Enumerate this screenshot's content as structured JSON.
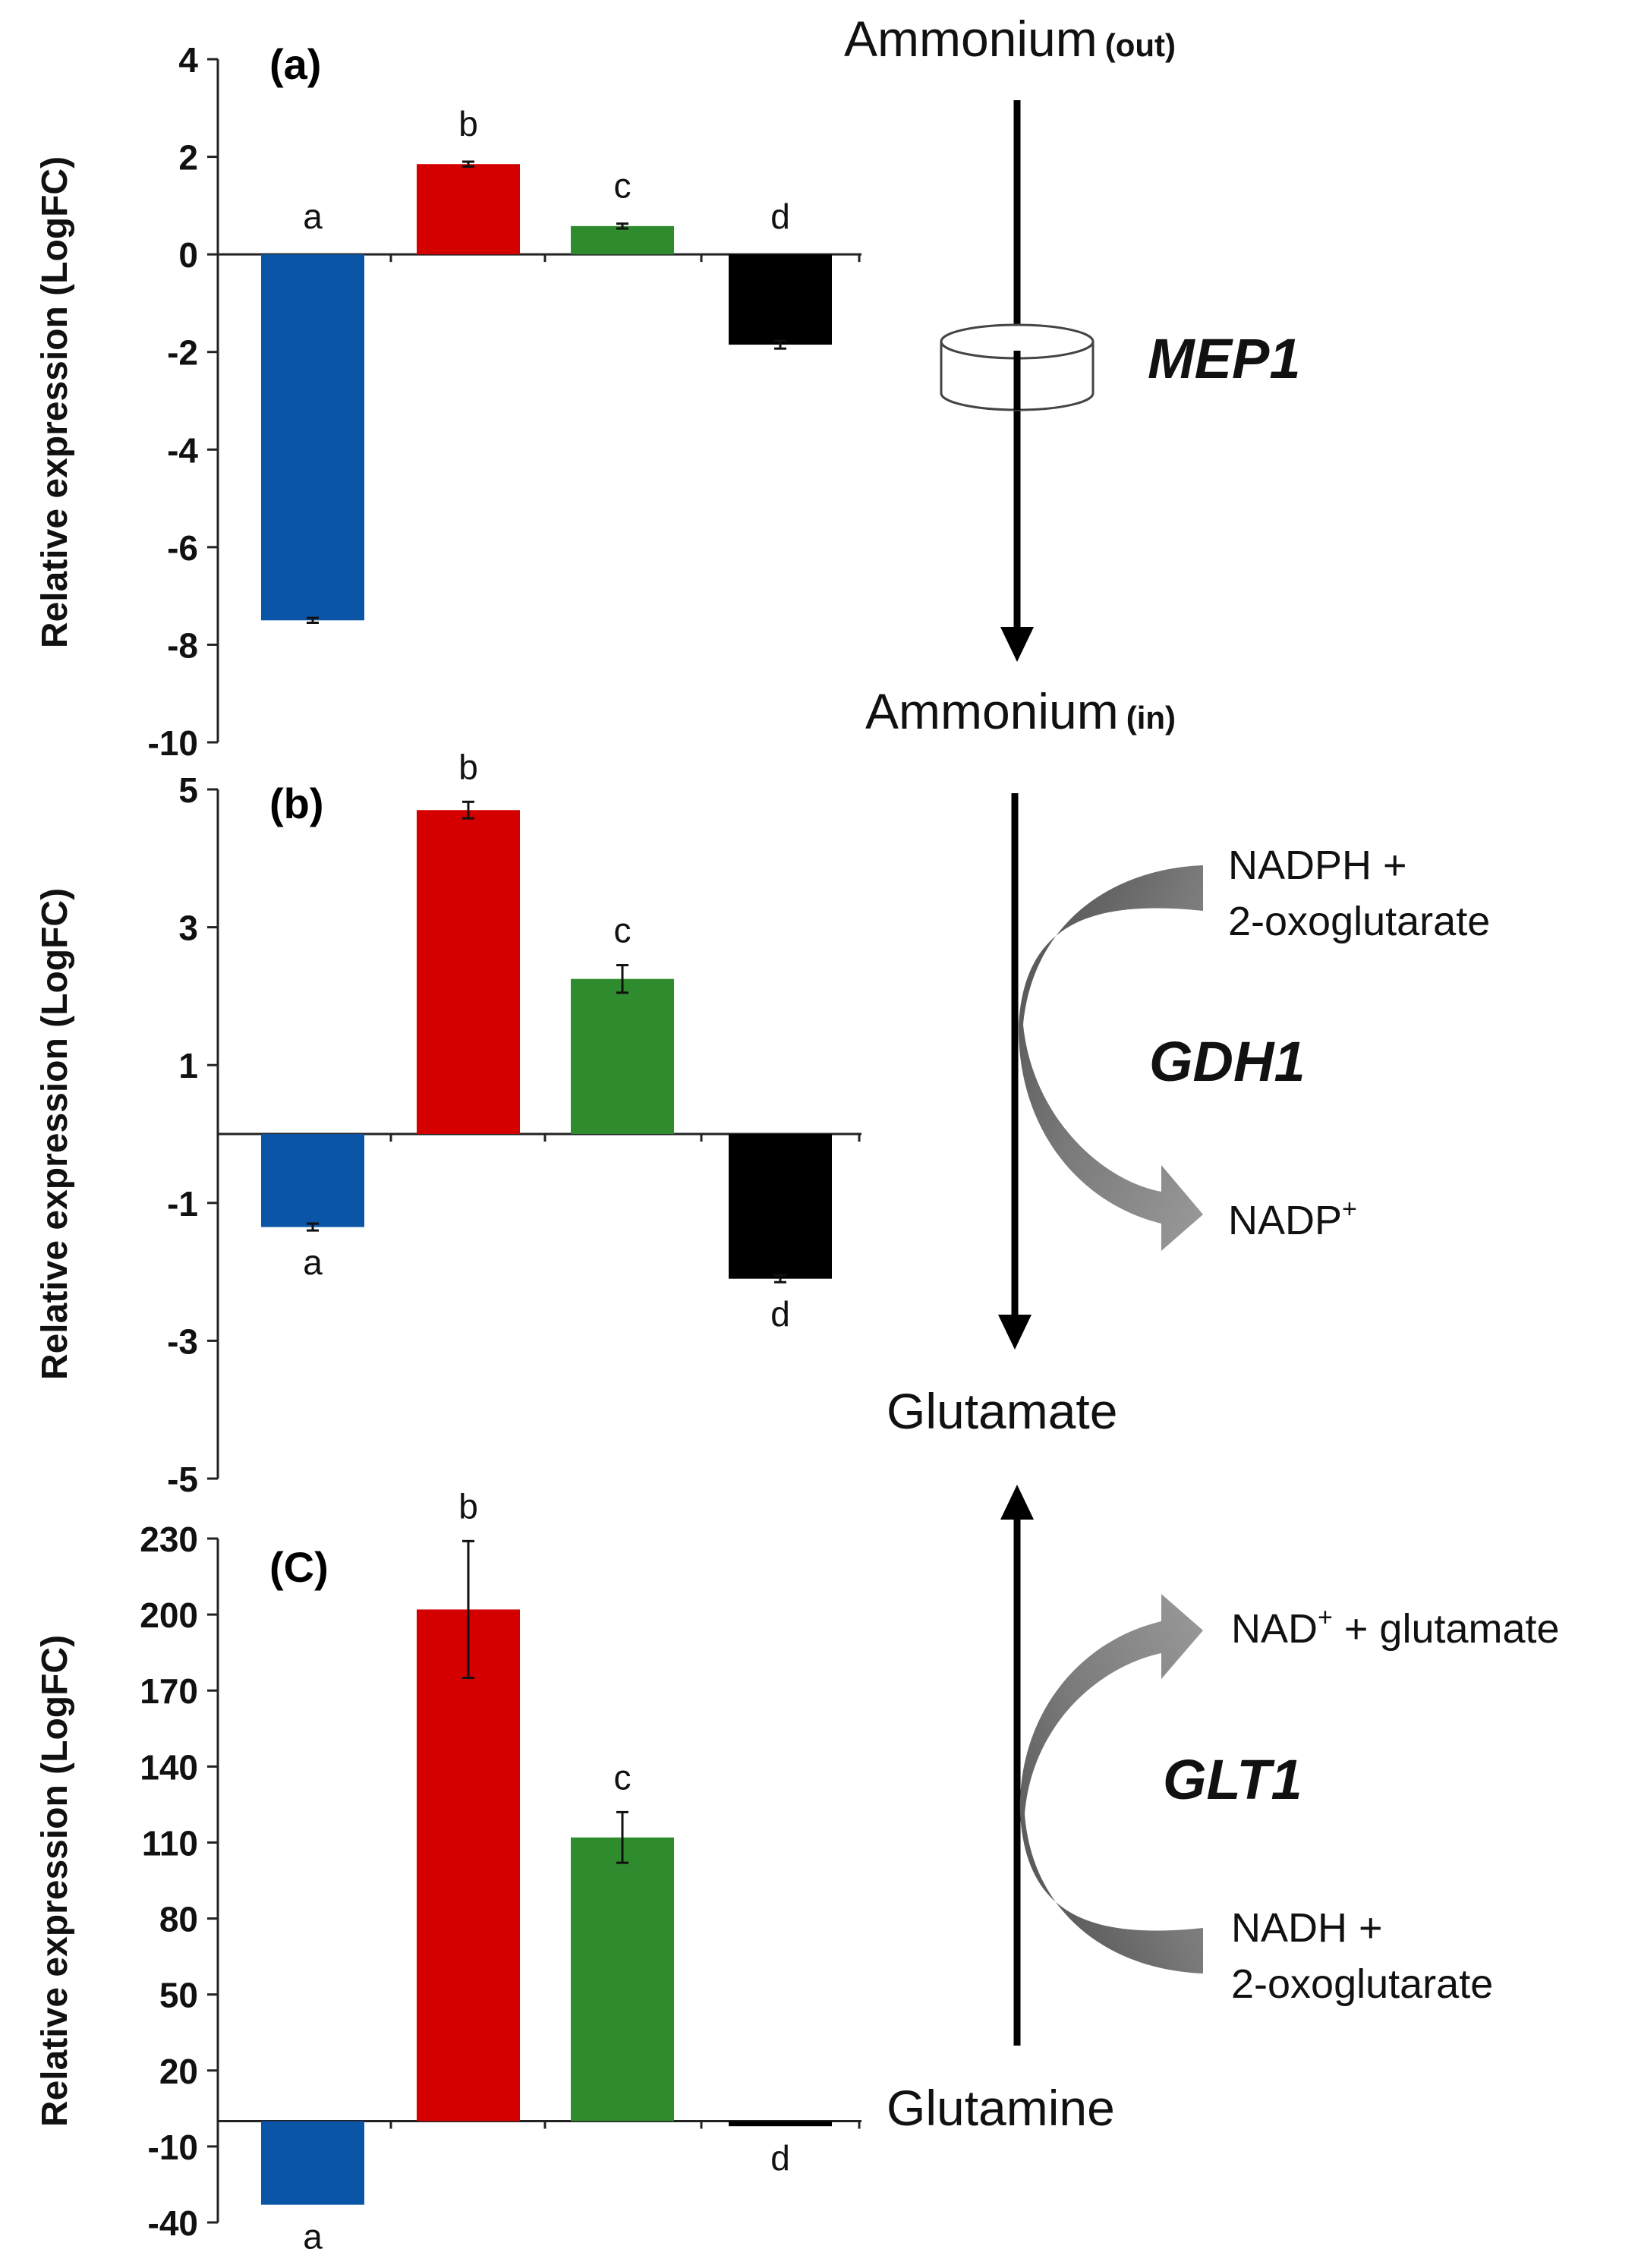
{
  "chart_data": [
    {
      "type": "bar",
      "panel_label": "(a)",
      "ylabel": "Relative expression (LogFC)",
      "ylim": [
        -10,
        4
      ],
      "yticks": [
        4,
        2,
        0,
        -2,
        -4,
        -6,
        -8,
        -10
      ],
      "values": [
        -7.5,
        1.85,
        0.58,
        -1.85
      ],
      "errors": [
        0.05,
        0.05,
        0.05,
        0.08
      ],
      "letters": [
        "a",
        "b",
        "c",
        "d"
      ],
      "colors": [
        "#0a55a5",
        "#d40000",
        "#2e8b2e",
        "#000000"
      ]
    },
    {
      "type": "bar",
      "panel_label": "(b)",
      "ylabel": "Relative expression (LogFC)",
      "ylim": [
        -5,
        5
      ],
      "yticks": [
        5,
        3,
        1,
        -1,
        -3,
        -5
      ],
      "values": [
        -1.35,
        4.7,
        2.25,
        -2.1
      ],
      "errors": [
        0.05,
        0.12,
        0.2,
        0.05
      ],
      "letters": [
        "a",
        "b",
        "c",
        "d"
      ],
      "colors": [
        "#0a55a5",
        "#d40000",
        "#2e8b2e",
        "#000000"
      ]
    },
    {
      "type": "bar",
      "panel_label": "(C)",
      "ylabel": "Relative expression (LogFC)",
      "ylim": [
        -40,
        230
      ],
      "yticks": [
        230,
        200,
        170,
        140,
        110,
        80,
        50,
        20,
        -10,
        -40
      ],
      "values": [
        -33,
        202,
        112,
        -2
      ],
      "errors": [
        0,
        27,
        10,
        0
      ],
      "letters": [
        "a",
        "b",
        "c",
        "d"
      ],
      "colors": [
        "#0a55a5",
        "#d40000",
        "#2e8b2e",
        "#000000"
      ]
    }
  ],
  "pathway": {
    "ammonium_out": "Ammonium",
    "ammonium_out_sub": "(out)",
    "ammonium_in": "Ammonium",
    "ammonium_in_sub": "(in)",
    "glutamate": "Glutamate",
    "glutamine": "Glutamine",
    "mep1": "MEP1",
    "gdh1": "GDH1",
    "glt1": "GLT1",
    "gdh1_sub1": "NADPH +",
    "gdh1_sub2": "2-oxoglutarate",
    "gdh1_prod": "NADP",
    "gdh1_prod_sup": "+",
    "glt1_prod": "NAD",
    "glt1_prod_sup": "+",
    "glt1_prod_rest": " + glutamate",
    "glt1_sub1": "NADH +",
    "glt1_sub2": "2-oxoglutarate",
    "arrow_color": "#6e6e6e"
  }
}
